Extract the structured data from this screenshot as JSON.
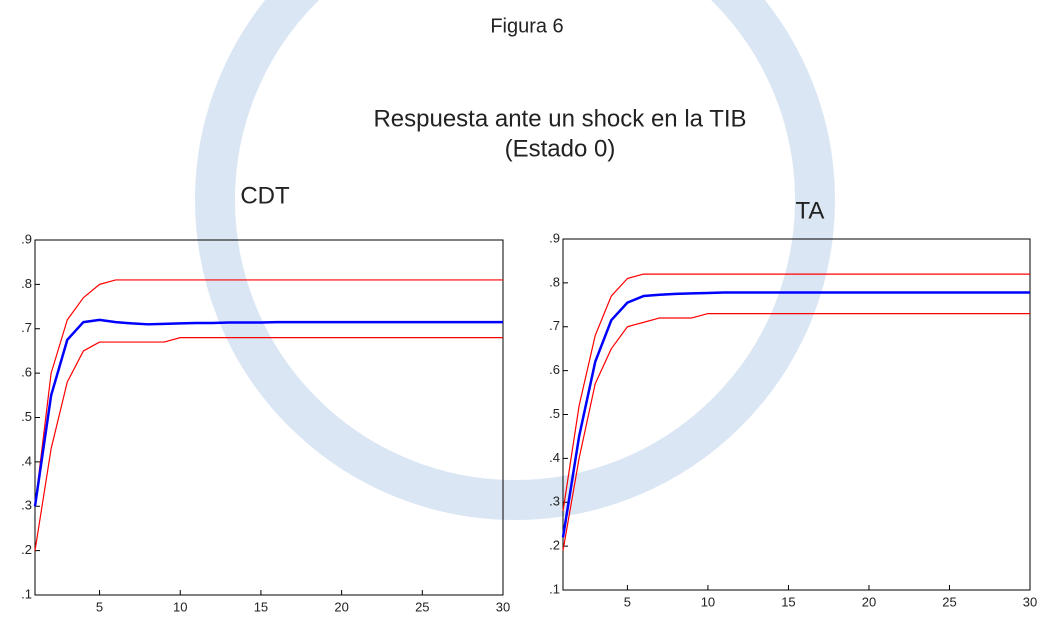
{
  "figure": {
    "label": "Figura 6",
    "title": "Respuesta ante un shock en la TIB",
    "subtitle": "(Estado 0)"
  },
  "chart_data": [
    {
      "type": "line",
      "title": "CDT",
      "x": [
        1,
        2,
        3,
        4,
        5,
        6,
        7,
        8,
        9,
        10,
        11,
        12,
        13,
        14,
        15,
        16,
        17,
        18,
        19,
        20,
        21,
        22,
        23,
        24,
        25,
        26,
        27,
        28,
        29,
        30
      ],
      "series": [
        {
          "color": "#ff0000",
          "values": [
            0.3,
            0.6,
            0.72,
            0.77,
            0.8,
            0.81,
            0.81,
            0.81,
            0.81,
            0.81,
            0.81,
            0.81,
            0.81,
            0.81,
            0.81,
            0.81,
            0.81,
            0.81,
            0.81,
            0.81,
            0.81,
            0.81,
            0.81,
            0.81,
            0.81,
            0.81,
            0.81,
            0.81,
            0.81,
            0.81
          ]
        },
        {
          "color": "#0000ff",
          "values": [
            0.3,
            0.55,
            0.675,
            0.715,
            0.72,
            0.715,
            0.712,
            0.71,
            0.711,
            0.712,
            0.713,
            0.713,
            0.714,
            0.714,
            0.714,
            0.715,
            0.715,
            0.715,
            0.715,
            0.715,
            0.715,
            0.715,
            0.715,
            0.715,
            0.715,
            0.715,
            0.715,
            0.715,
            0.715,
            0.715
          ]
        },
        {
          "color": "#ff0000",
          "values": [
            0.2,
            0.43,
            0.58,
            0.65,
            0.67,
            0.67,
            0.67,
            0.67,
            0.67,
            0.68,
            0.68,
            0.68,
            0.68,
            0.68,
            0.68,
            0.68,
            0.68,
            0.68,
            0.68,
            0.68,
            0.68,
            0.68,
            0.68,
            0.68,
            0.68,
            0.68,
            0.68,
            0.68,
            0.68,
            0.68
          ]
        }
      ],
      "xlim": [
        1,
        30
      ],
      "xticks": [
        5,
        10,
        15,
        20,
        25,
        30
      ],
      "ylim": [
        0.1,
        0.9
      ],
      "yticks": [
        {
          "value": 0.1,
          "label": ".1"
        },
        {
          "value": 0.2,
          "label": ".2"
        },
        {
          "value": 0.3,
          "label": ".3"
        },
        {
          "value": 0.4,
          "label": ".4"
        },
        {
          "value": 0.5,
          "label": ".5"
        },
        {
          "value": 0.6,
          "label": ".6"
        },
        {
          "value": 0.7,
          "label": ".7"
        },
        {
          "value": 0.8,
          "label": ".8"
        },
        {
          "value": 0.9,
          "label": ".9"
        }
      ],
      "grid": false
    },
    {
      "type": "line",
      "title": "TA",
      "x": [
        1,
        2,
        3,
        4,
        5,
        6,
        7,
        8,
        9,
        10,
        11,
        12,
        13,
        14,
        15,
        16,
        17,
        18,
        19,
        20,
        21,
        22,
        23,
        24,
        25,
        26,
        27,
        28,
        29,
        30
      ],
      "series": [
        {
          "color": "#ff0000",
          "values": [
            0.28,
            0.52,
            0.68,
            0.77,
            0.81,
            0.82,
            0.82,
            0.82,
            0.82,
            0.82,
            0.82,
            0.82,
            0.82,
            0.82,
            0.82,
            0.82,
            0.82,
            0.82,
            0.82,
            0.82,
            0.82,
            0.82,
            0.82,
            0.82,
            0.82,
            0.82,
            0.82,
            0.82,
            0.82,
            0.82
          ]
        },
        {
          "color": "#0000ff",
          "values": [
            0.22,
            0.45,
            0.62,
            0.715,
            0.755,
            0.77,
            0.773,
            0.775,
            0.776,
            0.777,
            0.778,
            0.778,
            0.778,
            0.778,
            0.778,
            0.778,
            0.778,
            0.778,
            0.778,
            0.778,
            0.778,
            0.778,
            0.778,
            0.778,
            0.778,
            0.778,
            0.778,
            0.778,
            0.778,
            0.778
          ]
        },
        {
          "color": "#ff0000",
          "values": [
            0.19,
            0.4,
            0.57,
            0.65,
            0.7,
            0.71,
            0.72,
            0.72,
            0.72,
            0.73,
            0.73,
            0.73,
            0.73,
            0.73,
            0.73,
            0.73,
            0.73,
            0.73,
            0.73,
            0.73,
            0.73,
            0.73,
            0.73,
            0.73,
            0.73,
            0.73,
            0.73,
            0.73,
            0.73,
            0.73
          ]
        }
      ],
      "xlim": [
        1,
        30
      ],
      "xticks": [
        5,
        10,
        15,
        20,
        25,
        30
      ],
      "ylim": [
        0.1,
        0.9
      ],
      "yticks": [
        {
          "value": 0.1,
          "label": ".1"
        },
        {
          "value": 0.2,
          "label": ".2"
        },
        {
          "value": 0.3,
          "label": ".3"
        },
        {
          "value": 0.4,
          "label": ".4"
        },
        {
          "value": 0.5,
          "label": ".5"
        },
        {
          "value": 0.6,
          "label": ".6"
        },
        {
          "value": 0.7,
          "label": ".7"
        },
        {
          "value": 0.8,
          "label": ".8"
        },
        {
          "value": 0.9,
          "label": ".9"
        }
      ],
      "grid": false
    }
  ]
}
